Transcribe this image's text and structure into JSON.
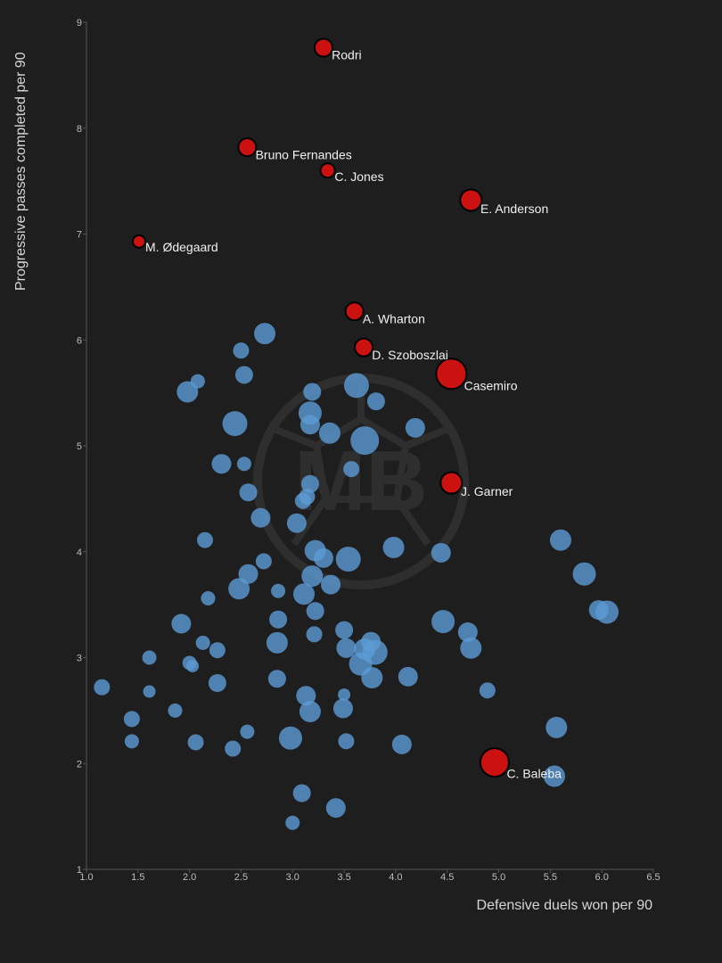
{
  "chart_data": {
    "type": "scatter",
    "title": "",
    "xlabel": "Defensive duels won per 90",
    "ylabel": "Progressive passes completed per 90",
    "xlim": [
      1.0,
      6.5
    ],
    "ylim": [
      1,
      9
    ],
    "x_ticks": [
      "1.0",
      "1.5",
      "2.0",
      "2.5",
      "3.0",
      "3.5",
      "4.0",
      "4.5",
      "5.0",
      "5.5",
      "6.0",
      "6.5"
    ],
    "y_ticks": [
      "1",
      "2",
      "3",
      "4",
      "5",
      "6",
      "7",
      "8",
      "9"
    ],
    "watermark": "MB",
    "colors": {
      "highlight": "#cc1111",
      "highlight_stroke": "#000000",
      "others": "#5b9bd5",
      "background": "#1e1e1e",
      "axis": "#555555"
    },
    "highlighted": [
      {
        "name": "Rodri",
        "x": 3.3,
        "y": 8.76,
        "size": 10
      },
      {
        "name": "Bruno Fernandes",
        "x": 2.56,
        "y": 7.82,
        "size": 10
      },
      {
        "name": "C. Jones",
        "x": 3.34,
        "y": 7.6,
        "size": 8
      },
      {
        "name": "E. Anderson",
        "x": 4.73,
        "y": 7.32,
        "size": 12
      },
      {
        "name": "M. Ødegaard",
        "x": 1.51,
        "y": 6.93,
        "size": 7
      },
      {
        "name": "A. Wharton",
        "x": 3.6,
        "y": 6.27,
        "size": 10
      },
      {
        "name": "D. Szoboszlai",
        "x": 3.69,
        "y": 5.93,
        "size": 10
      },
      {
        "name": "Casemiro",
        "x": 4.54,
        "y": 5.68,
        "size": 17
      },
      {
        "name": "J. Garner",
        "x": 4.54,
        "y": 4.65,
        "size": 12
      },
      {
        "name": "C. Baleba",
        "x": 4.96,
        "y": 2.01,
        "size": 16
      }
    ],
    "others": [
      {
        "x": 2.73,
        "y": 6.06,
        "size": 12
      },
      {
        "x": 2.5,
        "y": 5.9,
        "size": 9
      },
      {
        "x": 2.08,
        "y": 5.61,
        "size": 8
      },
      {
        "x": 1.98,
        "y": 5.51,
        "size": 12
      },
      {
        "x": 2.53,
        "y": 5.67,
        "size": 10
      },
      {
        "x": 3.19,
        "y": 5.51,
        "size": 10
      },
      {
        "x": 3.62,
        "y": 5.57,
        "size": 14
      },
      {
        "x": 3.81,
        "y": 5.42,
        "size": 10
      },
      {
        "x": 3.17,
        "y": 5.31,
        "size": 13
      },
      {
        "x": 2.44,
        "y": 5.21,
        "size": 14
      },
      {
        "x": 3.17,
        "y": 5.2,
        "size": 11
      },
      {
        "x": 3.36,
        "y": 5.12,
        "size": 12
      },
      {
        "x": 3.7,
        "y": 5.05,
        "size": 16
      },
      {
        "x": 4.19,
        "y": 5.17,
        "size": 11
      },
      {
        "x": 2.31,
        "y": 4.83,
        "size": 11
      },
      {
        "x": 2.53,
        "y": 4.83,
        "size": 8
      },
      {
        "x": 3.57,
        "y": 4.78,
        "size": 9
      },
      {
        "x": 3.17,
        "y": 4.64,
        "size": 10
      },
      {
        "x": 2.57,
        "y": 4.56,
        "size": 10
      },
      {
        "x": 3.14,
        "y": 4.52,
        "size": 9
      },
      {
        "x": 3.1,
        "y": 4.48,
        "size": 9
      },
      {
        "x": 2.69,
        "y": 4.32,
        "size": 11
      },
      {
        "x": 3.04,
        "y": 4.27,
        "size": 11
      },
      {
        "x": 2.15,
        "y": 4.11,
        "size": 9
      },
      {
        "x": 3.22,
        "y": 4.01,
        "size": 12
      },
      {
        "x": 3.3,
        "y": 3.94,
        "size": 11
      },
      {
        "x": 3.54,
        "y": 3.93,
        "size": 14
      },
      {
        "x": 3.98,
        "y": 4.04,
        "size": 12
      },
      {
        "x": 4.44,
        "y": 3.99,
        "size": 11
      },
      {
        "x": 5.6,
        "y": 4.11,
        "size": 12
      },
      {
        "x": 2.72,
        "y": 3.91,
        "size": 9
      },
      {
        "x": 2.57,
        "y": 3.79,
        "size": 11
      },
      {
        "x": 3.19,
        "y": 3.77,
        "size": 12
      },
      {
        "x": 3.37,
        "y": 3.69,
        "size": 11
      },
      {
        "x": 2.48,
        "y": 3.65,
        "size": 12
      },
      {
        "x": 2.86,
        "y": 3.63,
        "size": 8
      },
      {
        "x": 3.11,
        "y": 3.6,
        "size": 12
      },
      {
        "x": 2.18,
        "y": 3.56,
        "size": 8
      },
      {
        "x": 5.83,
        "y": 3.79,
        "size": 13
      },
      {
        "x": 5.97,
        "y": 3.45,
        "size": 11
      },
      {
        "x": 6.05,
        "y": 3.43,
        "size": 13
      },
      {
        "x": 3.22,
        "y": 3.44,
        "size": 10
      },
      {
        "x": 2.86,
        "y": 3.36,
        "size": 10
      },
      {
        "x": 1.92,
        "y": 3.32,
        "size": 11
      },
      {
        "x": 4.46,
        "y": 3.34,
        "size": 13
      },
      {
        "x": 3.5,
        "y": 3.26,
        "size": 10
      },
      {
        "x": 4.7,
        "y": 3.24,
        "size": 11
      },
      {
        "x": 3.21,
        "y": 3.22,
        "size": 9
      },
      {
        "x": 2.13,
        "y": 3.14,
        "size": 8
      },
      {
        "x": 2.85,
        "y": 3.14,
        "size": 12
      },
      {
        "x": 3.76,
        "y": 3.15,
        "size": 11
      },
      {
        "x": 3.52,
        "y": 3.09,
        "size": 11
      },
      {
        "x": 3.7,
        "y": 3.08,
        "size": 12
      },
      {
        "x": 3.8,
        "y": 3.05,
        "size": 14
      },
      {
        "x": 2.27,
        "y": 3.07,
        "size": 9
      },
      {
        "x": 4.73,
        "y": 3.09,
        "size": 12
      },
      {
        "x": 1.61,
        "y": 3.0,
        "size": 8
      },
      {
        "x": 2.0,
        "y": 2.95,
        "size": 8
      },
      {
        "x": 2.03,
        "y": 2.92,
        "size": 7
      },
      {
        "x": 3.66,
        "y": 2.94,
        "size": 13
      },
      {
        "x": 2.85,
        "y": 2.8,
        "size": 10
      },
      {
        "x": 3.77,
        "y": 2.81,
        "size": 12
      },
      {
        "x": 4.12,
        "y": 2.82,
        "size": 11
      },
      {
        "x": 2.27,
        "y": 2.76,
        "size": 10
      },
      {
        "x": 1.15,
        "y": 2.72,
        "size": 9
      },
      {
        "x": 1.61,
        "y": 2.68,
        "size": 7
      },
      {
        "x": 4.89,
        "y": 2.69,
        "size": 9
      },
      {
        "x": 3.13,
        "y": 2.64,
        "size": 11
      },
      {
        "x": 3.5,
        "y": 2.65,
        "size": 7
      },
      {
        "x": 1.86,
        "y": 2.5,
        "size": 8
      },
      {
        "x": 3.17,
        "y": 2.49,
        "size": 12
      },
      {
        "x": 3.49,
        "y": 2.52,
        "size": 11
      },
      {
        "x": 1.44,
        "y": 2.42,
        "size": 9
      },
      {
        "x": 5.56,
        "y": 2.34,
        "size": 12
      },
      {
        "x": 2.56,
        "y": 2.3,
        "size": 8
      },
      {
        "x": 2.98,
        "y": 2.24,
        "size": 13
      },
      {
        "x": 1.44,
        "y": 2.21,
        "size": 8
      },
      {
        "x": 2.06,
        "y": 2.2,
        "size": 9
      },
      {
        "x": 3.52,
        "y": 2.21,
        "size": 9
      },
      {
        "x": 4.06,
        "y": 2.18,
        "size": 11
      },
      {
        "x": 2.42,
        "y": 2.14,
        "size": 9
      },
      {
        "x": 5.54,
        "y": 1.88,
        "size": 12
      },
      {
        "x": 3.09,
        "y": 1.72,
        "size": 10
      },
      {
        "x": 3.42,
        "y": 1.58,
        "size": 11
      },
      {
        "x": 3.0,
        "y": 1.44,
        "size": 8
      }
    ]
  }
}
